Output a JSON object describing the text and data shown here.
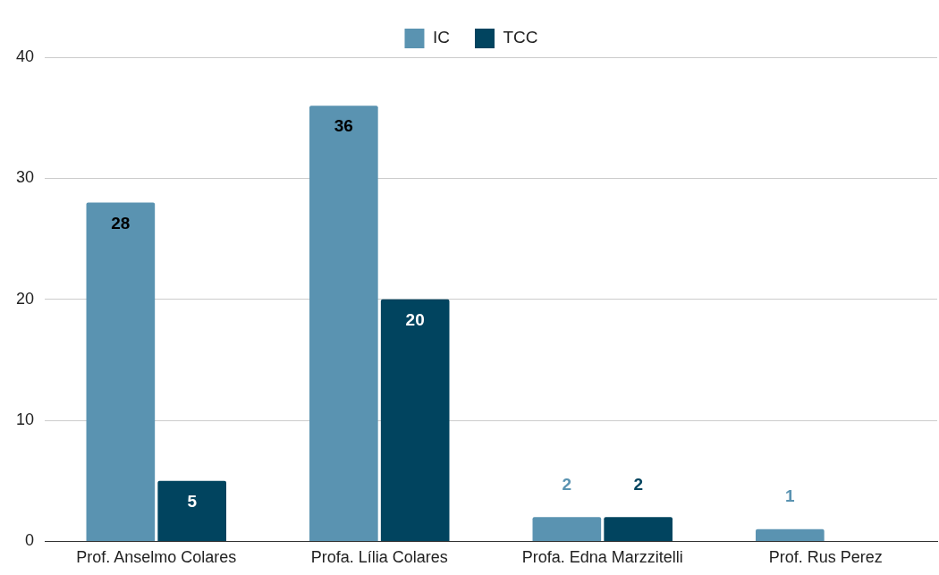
{
  "chart_data": {
    "type": "bar",
    "categories": [
      "Prof. Anselmo Colares",
      "Profa. Lília Colares",
      "Profa. Edna Marzzitelli",
      "Prof. Rus Perez"
    ],
    "series": [
      {
        "name": "IC",
        "color": "#5a93b1",
        "values": [
          28,
          36,
          2,
          1
        ]
      },
      {
        "name": "TCC",
        "color": "#01445f",
        "values": [
          5,
          20,
          2,
          null
        ]
      }
    ],
    "ylim": [
      0,
      40
    ],
    "yticks": [
      0,
      10,
      20,
      30,
      40
    ],
    "grid": "y",
    "legend": "top",
    "data_labels": true
  }
}
